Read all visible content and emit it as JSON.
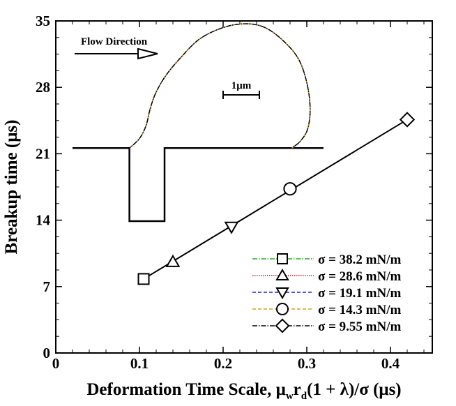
{
  "chart_data": {
    "type": "scatter",
    "xlabel_prefix": "Deformation Time Scale, ",
    "xlabel_mu": "μ",
    "xlabel_mu_sub": "w",
    "xlabel_r": "r",
    "xlabel_r_sub": "d",
    "xlabel_suffix": "(1 + λ)/σ (μs)",
    "ylabel": "Breakup time (μs)",
    "xlim": [
      0,
      0.45
    ],
    "ylim": [
      0,
      35
    ],
    "x_ticks": [
      0,
      0.1,
      0.2,
      0.3,
      0.4
    ],
    "x_tick_labels": [
      "0",
      "0.1",
      "0.2",
      "0.3",
      "0.4"
    ],
    "y_ticks": [
      0,
      7,
      14,
      21,
      28,
      35
    ],
    "y_tick_labels": [
      "0",
      "7",
      "14",
      "21",
      "28",
      "35"
    ],
    "series": [
      {
        "name": "σ = 38.2 mN/m",
        "marker": "square",
        "x": 0.105,
        "y": 7.8,
        "line_color": "#22aa22",
        "line_style": "dashdot"
      },
      {
        "name": "σ = 28.6 mN/m",
        "marker": "triangle-up",
        "x": 0.14,
        "y": 9.6,
        "line_color": "#cc2222",
        "line_style": "dotted"
      },
      {
        "name": "σ = 19.1 mN/m",
        "marker": "triangle-down",
        "x": 0.21,
        "y": 13.3,
        "line_color": "#2222cc",
        "line_style": "dashed"
      },
      {
        "name": "σ = 14.3 mN/m",
        "marker": "circle",
        "x": 0.28,
        "y": 17.3,
        "line_color": "#d4a017",
        "line_style": "dashed"
      },
      {
        "name": "σ = 9.55 mN/m",
        "marker": "diamond",
        "x": 0.42,
        "y": 24.6,
        "line_color": "#000000",
        "line_style": "dashdot"
      }
    ],
    "fit_line": {
      "x": [
        0.105,
        0.42
      ],
      "y": [
        7.8,
        24.6
      ]
    },
    "inset": {
      "flow_direction_label": "Flow Direction",
      "scale_bar_label": "1μm",
      "wall_profile": [
        [
          0.02,
          21.6
        ],
        [
          0.088,
          21.6
        ],
        [
          0.088,
          13.9
        ],
        [
          0.13,
          13.9
        ],
        [
          0.13,
          21.6
        ],
        [
          0.32,
          21.6
        ]
      ],
      "droplet_profile": [
        [
          0.088,
          21.6
        ],
        [
          0.1,
          22.6
        ],
        [
          0.108,
          24.0
        ],
        [
          0.113,
          25.8
        ],
        [
          0.12,
          27.5
        ],
        [
          0.132,
          29.3
        ],
        [
          0.15,
          31.2
        ],
        [
          0.172,
          33.1
        ],
        [
          0.2,
          34.3
        ],
        [
          0.227,
          34.7
        ],
        [
          0.25,
          34.3
        ],
        [
          0.272,
          32.9
        ],
        [
          0.29,
          31.0
        ],
        [
          0.3,
          28.5
        ],
        [
          0.304,
          25.8
        ],
        [
          0.301,
          23.6
        ],
        [
          0.292,
          22.3
        ],
        [
          0.282,
          21.6
        ]
      ]
    }
  }
}
